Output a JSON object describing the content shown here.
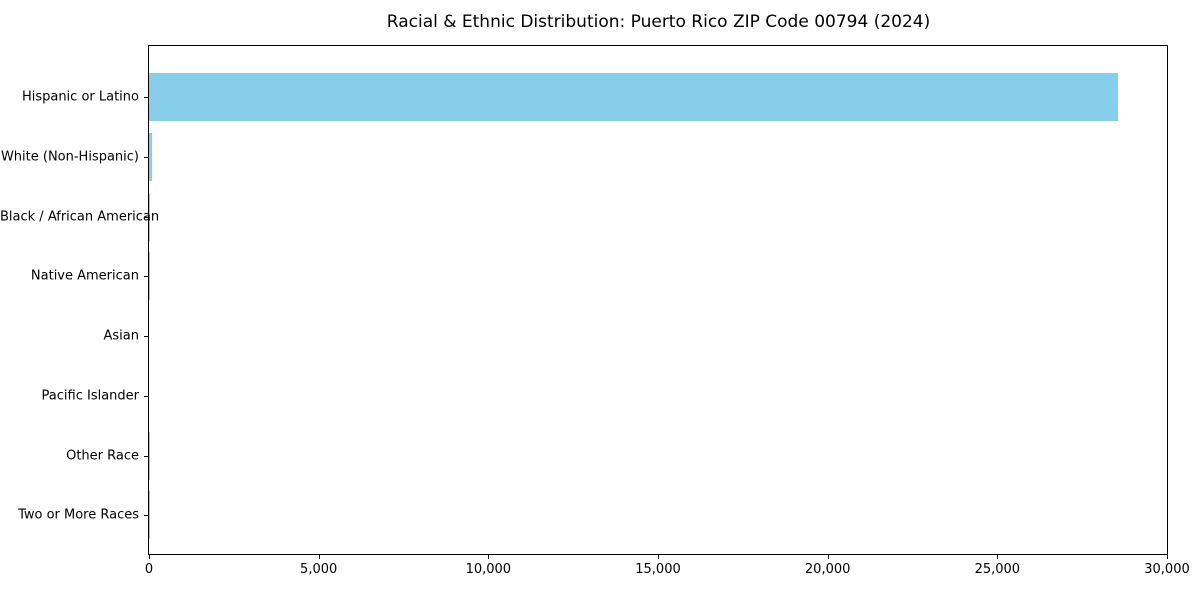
{
  "chart_data": {
    "type": "bar",
    "orientation": "horizontal",
    "title": "Racial & Ethnic Distribution: Puerto Rico ZIP Code 00794 (2024)",
    "xlabel": "",
    "ylabel": "",
    "categories": [
      "Hispanic or Latino",
      "White (Non-Hispanic)",
      "Black / African American",
      "Native American",
      "Asian",
      "Pacific Islander",
      "Other Race",
      "Two or More Races"
    ],
    "values": [
      28550,
      80,
      30,
      10,
      0,
      0,
      5,
      5
    ],
    "xlim": [
      0,
      30000
    ],
    "x_ticks": [
      0,
      5000,
      10000,
      15000,
      20000,
      25000,
      30000
    ],
    "x_tick_labels": [
      "0",
      "5,000",
      "10,000",
      "15,000",
      "20,000",
      "25,000",
      "30,000"
    ],
    "bar_color": "#87CEEB",
    "axis_color": "#000000",
    "grid": false,
    "legend": null
  }
}
